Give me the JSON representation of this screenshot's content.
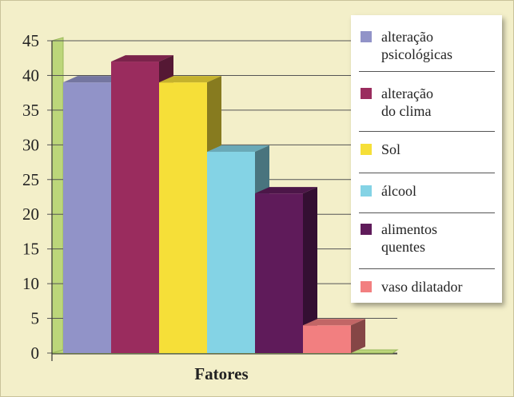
{
  "chart_data": {
    "type": "bar",
    "categories": [
      "alteração\npsicológicas",
      "alteração\ndo clima",
      "Sol",
      "álcool",
      "alimentos\nquentes",
      "vaso dilatador"
    ],
    "values": [
      39,
      42,
      39,
      29,
      23,
      4
    ],
    "colors": [
      "#9193c8",
      "#9a2c5e",
      "#f6df38",
      "#84d3e5",
      "#5f1b5a",
      "#f27f80"
    ],
    "yticks": [
      0,
      5,
      10,
      15,
      20,
      25,
      30,
      35,
      40,
      45
    ],
    "ylim": [
      0,
      45
    ],
    "xlabel": "Fatores",
    "legend_position": "right"
  }
}
